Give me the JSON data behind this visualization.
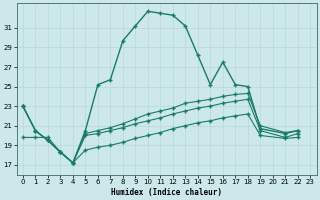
{
  "bg_color": "#cce8ea",
  "line_color": "#1a7a6a",
  "grid_color": "#b8d8da",
  "xlabel": "Humidex (Indice chaleur)",
  "xlim": [
    -0.5,
    23.5
  ],
  "ylim": [
    16.0,
    33.5
  ],
  "yticks": [
    17,
    19,
    21,
    23,
    25,
    27,
    29,
    31
  ],
  "xticks": [
    0,
    1,
    2,
    3,
    4,
    5,
    6,
    7,
    8,
    9,
    10,
    11,
    12,
    13,
    14,
    15,
    16,
    17,
    18,
    19,
    20,
    21,
    22,
    23
  ],
  "x": [
    0,
    1,
    2,
    3,
    4,
    5,
    6,
    7,
    8,
    9,
    10,
    11,
    12,
    13,
    14,
    15,
    16,
    17,
    18,
    19,
    21,
    22
  ],
  "curve1": [
    23,
    20.5,
    19.5,
    18.3,
    17.2,
    20.5,
    25.2,
    25.7,
    29.7,
    31.2,
    32.7,
    32.5,
    32.3,
    31.2,
    28.2,
    25.2,
    27.5,
    25.2,
    25.0,
    20.7,
    20.2,
    20.5
  ],
  "curve2": [
    23,
    20.5,
    19.5,
    18.3,
    17.2,
    20.2,
    20.5,
    20.8,
    21.2,
    21.7,
    22.2,
    22.5,
    22.8,
    23.3,
    23.5,
    23.7,
    24.0,
    24.2,
    24.3,
    21.0,
    20.3,
    20.5
  ],
  "curve3": [
    23,
    20.5,
    19.5,
    18.3,
    17.2,
    20.0,
    20.2,
    20.5,
    20.8,
    21.2,
    21.5,
    21.8,
    22.2,
    22.5,
    22.8,
    23.0,
    23.3,
    23.5,
    23.7,
    20.5,
    19.8,
    20.2
  ],
  "curve4": [
    19.8,
    19.8,
    19.8,
    18.3,
    17.2,
    18.5,
    18.8,
    19.0,
    19.3,
    19.7,
    20.0,
    20.3,
    20.7,
    21.0,
    21.3,
    21.5,
    21.8,
    22.0,
    22.2,
    20.0,
    19.7,
    19.8
  ]
}
